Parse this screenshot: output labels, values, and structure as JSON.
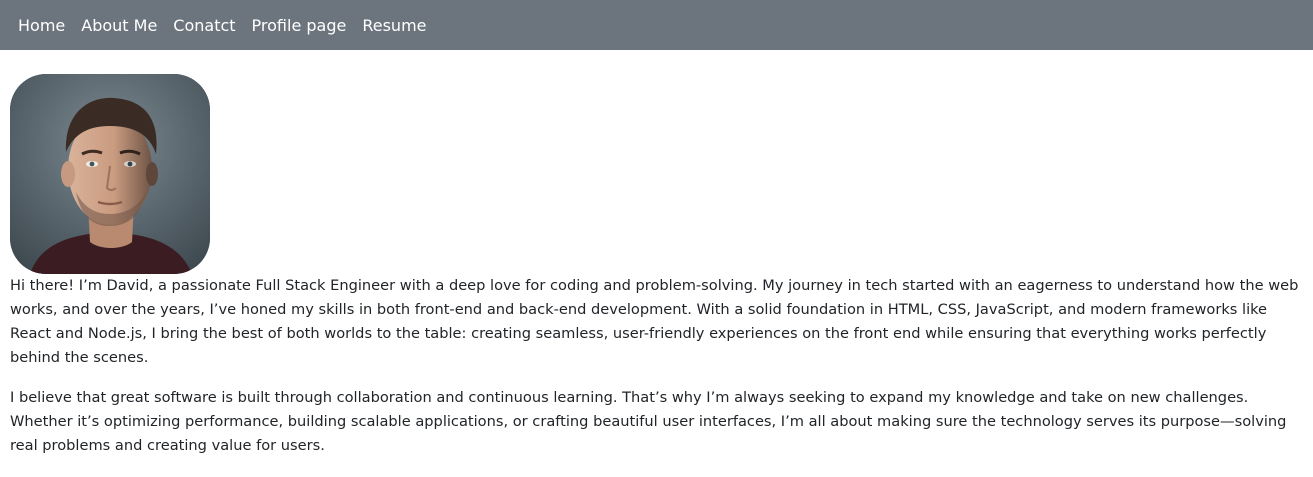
{
  "nav": {
    "links": [
      "Home",
      "About Me",
      "Conatct",
      "Profile page",
      "Resume"
    ]
  },
  "profile": {
    "photo_icon": "person-portrait-icon",
    "paragraphs": [
      "Hi there! I’m David, a passionate Full Stack Engineer with a deep love for coding and problem-solving. My journey in tech started with an eagerness to understand how the web works, and over the years, I’ve honed my skills in both front-end and back-end development. With a solid foundation in HTML, CSS, JavaScript, and modern frameworks like React and Node.js, I bring the best of both worlds to the table: creating seamless, user-friendly experiences on the front end while ensuring that everything works perfectly behind the scenes.",
      "I believe that great software is built through collaboration and continuous learning. That’s why I’m always seeking to expand my knowledge and take on new challenges. Whether it’s optimizing performance, building scalable applications, or crafting beautiful user interfaces, I’m all about making sure the technology serves its purpose—solving real problems and creating value for users."
    ]
  },
  "colors": {
    "navbar_bg": "#6c757d",
    "nav_text": "#ffffff",
    "body_text": "#212529"
  }
}
